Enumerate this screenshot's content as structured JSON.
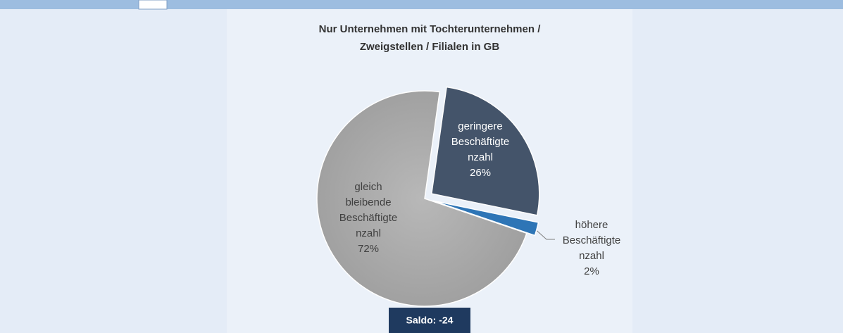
{
  "chart_data": {
    "type": "pie",
    "title": [
      "Nur Unternehmen mit Tochterunternehmen /",
      "Zweigstellen / Filialen in GB"
    ],
    "categories": [
      "geringere Beschäftigtenzahl",
      "höhere Beschäftigtenzahl",
      "gleich bleibende Beschäftigtenzahl"
    ],
    "values": [
      26,
      2,
      72
    ],
    "value_labels": [
      "26%",
      "2%",
      "72%"
    ],
    "colors": [
      "#44546a",
      "#2e75b6",
      "#a5a5a5"
    ],
    "annotation": "Saldo: -24"
  }
}
